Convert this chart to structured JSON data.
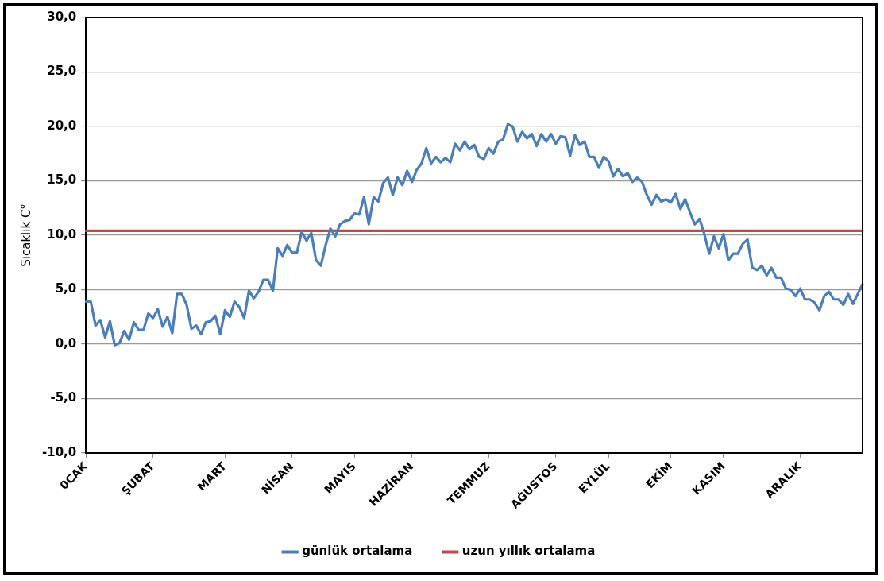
{
  "chart_data": {
    "type": "line",
    "ylabel": "Sıcaklık C°",
    "categories": [
      "0CAK",
      null,
      null,
      null,
      null,
      null,
      null,
      null,
      null,
      null,
      null,
      null,
      null,
      null,
      "ŞUBAT",
      null,
      null,
      null,
      null,
      null,
      null,
      null,
      null,
      null,
      null,
      null,
      null,
      null,
      null,
      "MART",
      null,
      null,
      null,
      null,
      null,
      null,
      null,
      null,
      null,
      null,
      null,
      null,
      null,
      "NİSAN",
      null,
      null,
      null,
      null,
      null,
      null,
      null,
      null,
      null,
      null,
      null,
      null,
      "MAYIS",
      null,
      null,
      null,
      null,
      null,
      null,
      null,
      null,
      null,
      null,
      null,
      "HAZİRAN",
      null,
      null,
      null,
      null,
      null,
      null,
      null,
      null,
      null,
      null,
      null,
      null,
      null,
      null,
      null,
      "TEMMUZ",
      null,
      null,
      null,
      null,
      null,
      null,
      null,
      null,
      null,
      null,
      null,
      null,
      null,
      "AĞUSTOS",
      null,
      null,
      null,
      null,
      null,
      null,
      null,
      null,
      null,
      null,
      "EYLÜL",
      null,
      null,
      null,
      null,
      null,
      null,
      null,
      null,
      null,
      null,
      null,
      null,
      "EKİM",
      null,
      null,
      null,
      null,
      null,
      null,
      null,
      null,
      null,
      null,
      "KASIM",
      null,
      null,
      null,
      null,
      null,
      null,
      null,
      null,
      null,
      null,
      null,
      null,
      null,
      null,
      null,
      "ARALIK",
      null,
      null,
      null,
      null,
      null,
      null,
      null,
      null,
      null,
      null,
      null,
      null,
      null
    ],
    "series": [
      {
        "name": "günlük ortalama",
        "color": "#4a7ebb",
        "values": [
          3.9,
          3.9,
          1.7,
          2.2,
          0.6,
          2.1,
          -0.1,
          0.1,
          1.2,
          0.4,
          2.0,
          1.3,
          1.3,
          2.8,
          2.4,
          3.2,
          1.6,
          2.5,
          1.0,
          4.6,
          4.6,
          3.6,
          1.4,
          1.7,
          0.9,
          2.0,
          2.1,
          2.6,
          0.9,
          3.1,
          2.5,
          3.9,
          3.4,
          2.4,
          4.9,
          4.2,
          4.8,
          5.9,
          5.9,
          4.9,
          8.8,
          8.1,
          9.1,
          8.4,
          8.4,
          10.3,
          9.5,
          10.2,
          7.7,
          7.2,
          9.1,
          10.6,
          9.9,
          11.0,
          11.3,
          11.4,
          12.0,
          11.9,
          13.5,
          11.0,
          13.5,
          13.1,
          14.8,
          15.3,
          13.7,
          15.3,
          14.6,
          15.9,
          14.9,
          16.0,
          16.6,
          18.0,
          16.6,
          17.2,
          16.7,
          17.1,
          16.7,
          18.4,
          17.8,
          18.6,
          17.9,
          18.3,
          17.2,
          17.0,
          18.0,
          17.5,
          18.6,
          18.8,
          20.2,
          20.0,
          18.6,
          19.5,
          18.9,
          19.3,
          18.2,
          19.3,
          18.6,
          19.3,
          18.4,
          19.1,
          19.0,
          17.3,
          19.2,
          18.3,
          18.6,
          17.2,
          17.2,
          16.2,
          17.2,
          16.8,
          15.4,
          16.1,
          15.4,
          15.7,
          14.9,
          15.3,
          14.9,
          13.7,
          12.8,
          13.7,
          13.1,
          13.3,
          13.0,
          13.8,
          12.4,
          13.3,
          12.1,
          11.0,
          11.5,
          10.1,
          8.3,
          9.9,
          8.8,
          10.1,
          7.7,
          8.3,
          8.3,
          9.2,
          9.6,
          7.0,
          6.8,
          7.2,
          6.3,
          7.0,
          6.1,
          6.1,
          5.1,
          5.0,
          4.4,
          5.1,
          4.1,
          4.1,
          3.8,
          3.1,
          4.4,
          4.8,
          4.1,
          4.1,
          3.6,
          4.6,
          3.7,
          4.6,
          5.5
        ]
      },
      {
        "name": "uzun yıllık ortalama",
        "color": "#be4b48",
        "values": [
          10.4,
          10.4,
          10.4,
          10.4,
          10.4,
          10.4,
          10.4,
          10.4,
          10.4,
          10.4,
          10.4,
          10.4,
          10.4,
          10.4,
          10.4,
          10.4,
          10.4,
          10.4,
          10.4,
          10.4,
          10.4,
          10.4,
          10.4,
          10.4,
          10.4,
          10.4,
          10.4,
          10.4,
          10.4,
          10.4,
          10.4,
          10.4,
          10.4,
          10.4,
          10.4,
          10.4,
          10.4,
          10.4,
          10.4,
          10.4,
          10.4,
          10.4,
          10.4,
          10.4,
          10.4,
          10.4,
          10.4,
          10.4,
          10.4,
          10.4,
          10.4,
          10.4,
          10.4,
          10.4,
          10.4,
          10.4,
          10.4,
          10.4,
          10.4,
          10.4,
          10.4,
          10.4,
          10.4,
          10.4,
          10.4,
          10.4,
          10.4,
          10.4,
          10.4,
          10.4,
          10.4,
          10.4,
          10.4,
          10.4,
          10.4,
          10.4,
          10.4,
          10.4,
          10.4,
          10.4,
          10.4,
          10.4,
          10.4,
          10.4,
          10.4,
          10.4,
          10.4,
          10.4,
          10.4,
          10.4,
          10.4,
          10.4,
          10.4,
          10.4,
          10.4,
          10.4,
          10.4,
          10.4,
          10.4,
          10.4,
          10.4,
          10.4,
          10.4,
          10.4,
          10.4,
          10.4,
          10.4,
          10.4,
          10.4,
          10.4,
          10.4,
          10.4,
          10.4,
          10.4,
          10.4,
          10.4,
          10.4,
          10.4,
          10.4,
          10.4,
          10.4,
          10.4,
          10.4,
          10.4,
          10.4,
          10.4,
          10.4,
          10.4,
          10.4,
          10.4,
          10.4,
          10.4,
          10.4,
          10.4,
          10.4,
          10.4,
          10.4,
          10.4,
          10.4,
          10.4,
          10.4,
          10.4,
          10.4,
          10.4,
          10.4,
          10.4,
          10.4,
          10.4,
          10.4,
          10.4,
          10.4,
          10.4,
          10.4,
          10.4,
          10.4,
          10.4,
          10.4,
          10.4,
          10.4,
          10.4,
          10.4,
          10.4,
          10.4
        ]
      }
    ],
    "ylim": [
      -10,
      30
    ],
    "yticks": [
      {
        "value": -10,
        "label": "-10,0"
      },
      {
        "value": -5,
        "label": "-5,0"
      },
      {
        "value": 0,
        "label": "0,0"
      },
      {
        "value": 5,
        "label": "5,0"
      },
      {
        "value": 10,
        "label": "10,0"
      },
      {
        "value": 15,
        "label": "15,0"
      },
      {
        "value": 20,
        "label": "20,0"
      },
      {
        "value": 25,
        "label": "25,0"
      },
      {
        "value": 30,
        "label": "30,0"
      }
    ],
    "grid": "y",
    "legend": "bottom",
    "marker": "none",
    "line_style": "solid"
  }
}
